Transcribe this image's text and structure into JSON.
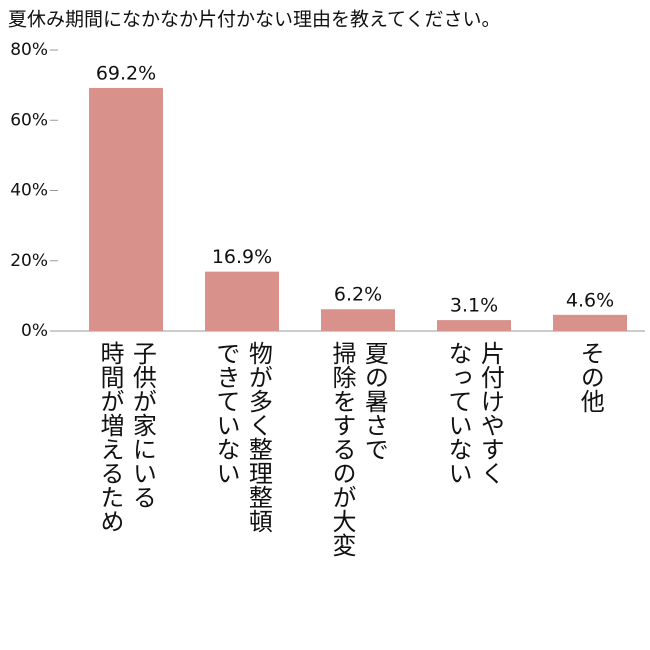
{
  "chart_data": {
    "type": "bar",
    "title": "夏休み期間になかなか片付かない理由を教えてください。",
    "categories": [
      "子供が家にいる\n時間が増えるため",
      "物が多く整理整頓\nできていない",
      "夏の暑さで\n掃除をするのが大変",
      "片付けやすく\nなっていない",
      "その他"
    ],
    "values": [
      69.2,
      16.9,
      6.2,
      3.1,
      4.6
    ],
    "value_labels": [
      "69.2%",
      "16.9%",
      "6.2%",
      "3.1%",
      "4.6%"
    ],
    "color": "#d9918c",
    "ylim": [
      0,
      80
    ],
    "yticks": [
      {
        "value": 0,
        "label": "0%"
      },
      {
        "value": 20,
        "label": "20%"
      },
      {
        "value": 40,
        "label": "40%"
      },
      {
        "value": 60,
        "label": "60%"
      },
      {
        "value": 80,
        "label": "80%"
      }
    ],
    "grid": false
  }
}
